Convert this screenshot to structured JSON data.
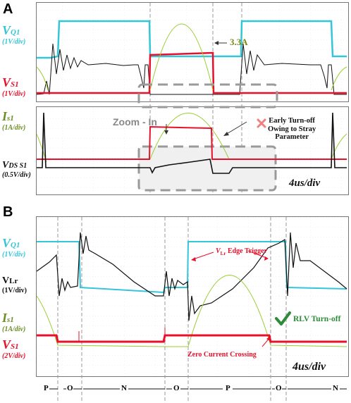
{
  "colors": {
    "cyan": "#33c6d8",
    "red": "#e8102a",
    "green": "#9acd32",
    "black": "#111111",
    "gray_box": "#9a9a9a"
  },
  "panel_a": {
    "letter": "A",
    "vq1": {
      "name": "V",
      "sub": "Q1",
      "scale": "(1V/div)"
    },
    "vs1": {
      "name": "V",
      "sub": "S1",
      "scale": "(1V/div)"
    },
    "is1": {
      "name": "I",
      "sub": "s1",
      "scale": "(1A/div)"
    },
    "vds": {
      "name": "V",
      "sub": "DS S1",
      "scale": "(0.5V/div)"
    },
    "current_label": "3.3A",
    "zoom_label": "Zoom - In",
    "early_text": "Early Turn-off\nOwing to Stray\nParameter",
    "timebase": "4us/div"
  },
  "panel_b": {
    "letter": "B",
    "vq1": {
      "name": "V",
      "sub": "Q1",
      "scale": "(1V/div)"
    },
    "vlr": {
      "name": "V",
      "sub": "Lr",
      "scale": "(1V/div)"
    },
    "is1": {
      "name": "I",
      "sub": "s1",
      "scale": "(1A/div)"
    },
    "vs1": {
      "name": "V",
      "sub": "S1",
      "scale": "(2V/div)"
    },
    "edge_prefix": "V",
    "edge_sub": "Lr",
    "edge_text": "Edge Trigger",
    "rlv_text": "RLV Turn-off",
    "zero_text": "Zero Current Crossing",
    "timebase": "4us/div",
    "segments": [
      "P",
      "O",
      "N",
      "O",
      "P",
      "O",
      "N"
    ]
  }
}
